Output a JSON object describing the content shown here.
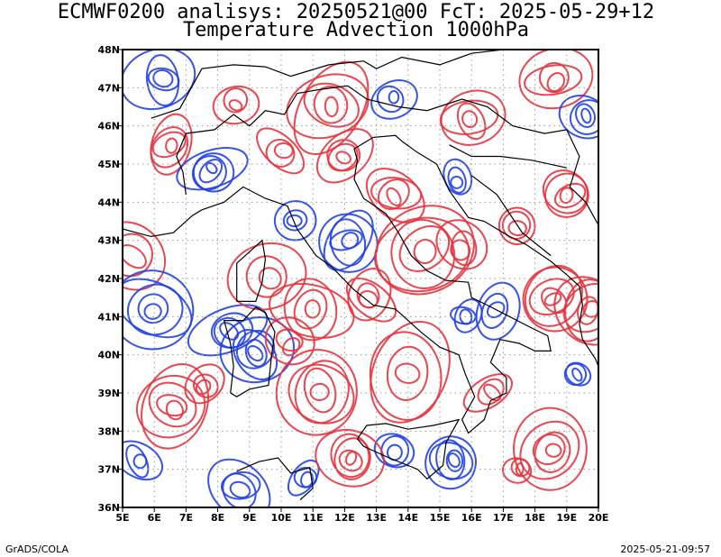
{
  "header": {
    "line1": "ECMWF0200 analisys: 20250521@00 FcT: 2025-05-29+12",
    "line2": "Temperature Advection 1000hPa"
  },
  "footer": {
    "left": "GrADS/COLA",
    "right": "2025-05-21-09:57"
  },
  "map": {
    "lon_range": [
      5,
      20
    ],
    "lat_range": [
      36,
      48
    ],
    "lon_ticks": [
      "5E",
      "6E",
      "7E",
      "8E",
      "9E",
      "10E",
      "11E",
      "12E",
      "13E",
      "14E",
      "15E",
      "16E",
      "17E",
      "18E",
      "19E",
      "20E"
    ],
    "lat_ticks": [
      "36N",
      "37N",
      "38N",
      "39N",
      "40N",
      "41N",
      "42N",
      "43N",
      "44N",
      "45N",
      "46N",
      "47N",
      "48N"
    ],
    "grid": true,
    "colors": {
      "warm_advection": "#e8323c",
      "cold_advection": "#2040e8",
      "coastline": "#000000",
      "grid": "#999999"
    }
  }
}
